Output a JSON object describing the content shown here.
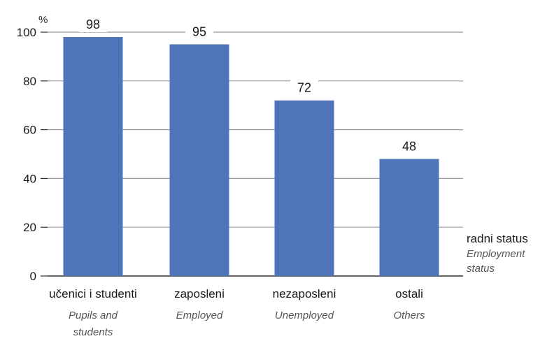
{
  "chart_data": {
    "type": "bar",
    "y_unit_label": "%",
    "categories": [
      {
        "label": "učenici i studenti",
        "label_en": [
          "Pupils and",
          "students"
        ]
      },
      {
        "label": "zaposleni",
        "label_en": [
          "Employed"
        ]
      },
      {
        "label": "nezaposleni",
        "label_en": [
          "Unemployed"
        ]
      },
      {
        "label": "ostali",
        "label_en": [
          "Others"
        ]
      }
    ],
    "values": [
      98,
      95,
      72,
      48
    ],
    "data_labels": [
      "98",
      "95",
      "72",
      "48"
    ],
    "ylim": [
      0,
      100
    ],
    "yticks": [
      0,
      20,
      40,
      60,
      80,
      100
    ],
    "ytick_labels": [
      "0",
      "20",
      "40",
      "60",
      "80",
      "100"
    ],
    "xlabel": "radni status",
    "xlabel_en": [
      "Employment",
      "status"
    ],
    "grid": true,
    "bar_color": "#4f75b9",
    "grid_color": "#9a9a9a"
  }
}
